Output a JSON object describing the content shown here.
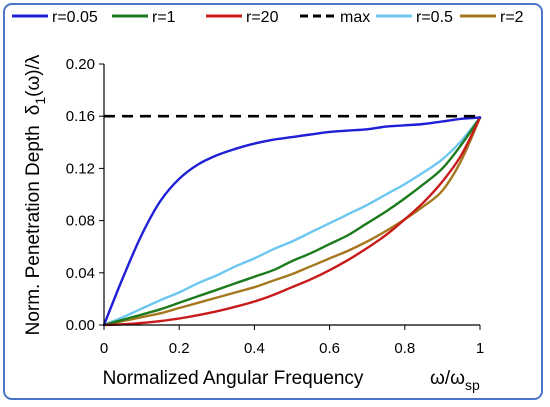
{
  "chart_data": {
    "type": "line",
    "xlabel": "Normalized Angular Frequency",
    "xunit": {
      "base": "ω/ω",
      "sub": "sp"
    },
    "ylabel_text": "Norm. Penetration Depth",
    "ylabel_unit": {
      "base": "δ",
      "sub": "1",
      "rest": "(ω)/λ"
    },
    "xlim": [
      0,
      1
    ],
    "ylim": [
      0,
      0.2
    ],
    "xticks": [
      0,
      0.2,
      0.4,
      0.6,
      0.8,
      1
    ],
    "xtick_labels": [
      "0",
      "0.2",
      "0.4",
      "0.6",
      "0.8",
      "1"
    ],
    "yticks": [
      0,
      0.04,
      0.08,
      0.12,
      0.16,
      0.2
    ],
    "ytick_labels": [
      "0.00",
      "0.04",
      "0.08",
      "0.12",
      "0.16",
      "0.20"
    ],
    "grid": false,
    "legend_position": "top",
    "x": [
      0,
      0.05,
      0.1,
      0.15,
      0.2,
      0.25,
      0.3,
      0.35,
      0.4,
      0.45,
      0.5,
      0.55,
      0.6,
      0.65,
      0.7,
      0.75,
      0.8,
      0.85,
      0.9,
      0.95,
      1
    ],
    "series": [
      {
        "name": "r=0.05",
        "color": "#1f1fd6",
        "dash": false,
        "values": [
          0,
          0.036,
          0.069,
          0.095,
          0.112,
          0.123,
          0.13,
          0.135,
          0.139,
          0.142,
          0.144,
          0.146,
          0.148,
          0.149,
          0.15,
          0.152,
          0.153,
          0.154,
          0.156,
          0.158,
          0.159
        ]
      },
      {
        "name": "r=1",
        "color": "#1b7a1b",
        "dash": false,
        "values": [
          0,
          0.004,
          0.008,
          0.012,
          0.017,
          0.022,
          0.027,
          0.032,
          0.037,
          0.042,
          0.049,
          0.055,
          0.062,
          0.069,
          0.078,
          0.087,
          0.097,
          0.108,
          0.12,
          0.138,
          0.159
        ]
      },
      {
        "name": "r=20",
        "color": "#c91a1a",
        "dash": false,
        "values": [
          0,
          0.0005,
          0.0015,
          0.003,
          0.005,
          0.0075,
          0.0105,
          0.014,
          0.018,
          0.023,
          0.029,
          0.035,
          0.042,
          0.05,
          0.059,
          0.069,
          0.081,
          0.094,
          0.11,
          0.13,
          0.159
        ]
      },
      {
        "name": "max",
        "color": "#000000",
        "dash": true,
        "values": [
          0.16,
          0.16,
          0.16,
          0.16,
          0.16,
          0.16,
          0.16,
          0.16,
          0.16,
          0.16,
          0.16,
          0.16,
          0.16,
          0.16,
          0.16,
          0.16,
          0.16,
          0.16,
          0.16,
          0.16,
          0.16
        ]
      },
      {
        "name": "r=0.5",
        "color": "#6cc7f0",
        "dash": false,
        "values": [
          0,
          0.006,
          0.0125,
          0.019,
          0.025,
          0.032,
          0.038,
          0.045,
          0.051,
          0.058,
          0.064,
          0.071,
          0.078,
          0.085,
          0.092,
          0.1,
          0.108,
          0.117,
          0.127,
          0.141,
          0.159
        ]
      },
      {
        "name": "r=2",
        "color": "#a5781f",
        "dash": false,
        "values": [
          0,
          0.003,
          0.006,
          0.009,
          0.013,
          0.017,
          0.021,
          0.025,
          0.029,
          0.034,
          0.039,
          0.045,
          0.051,
          0.057,
          0.064,
          0.072,
          0.081,
          0.091,
          0.103,
          0.126,
          0.159
        ]
      }
    ]
  }
}
